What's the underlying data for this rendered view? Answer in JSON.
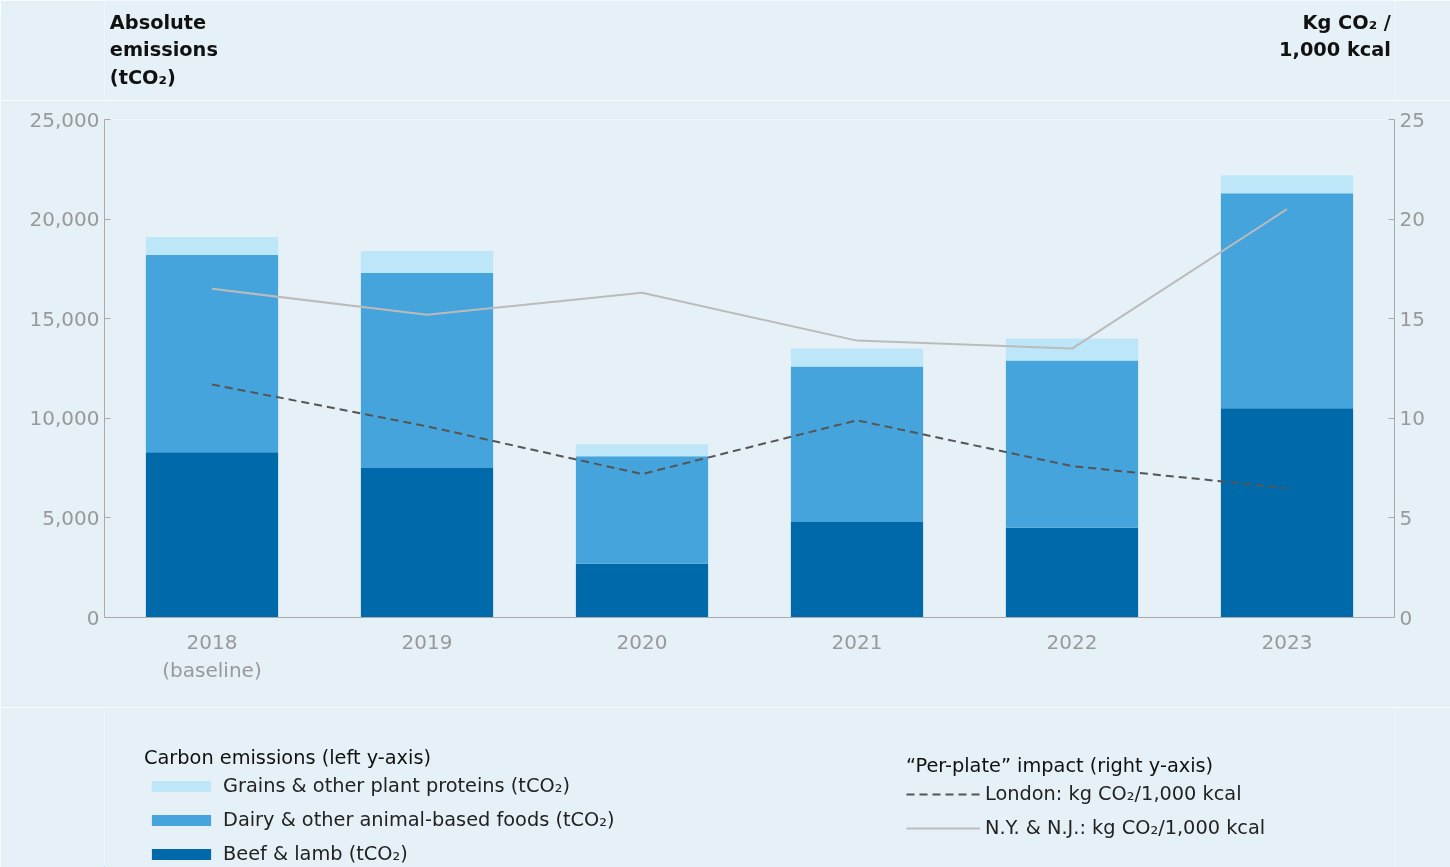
{
  "chart_data": {
    "type": "bar",
    "stacked": true,
    "categories": [
      "2018\n(baseline)",
      "2019",
      "2020",
      "2021",
      "2022",
      "2023"
    ],
    "ylabel": "Absolute\nemissions\n(tCO₂)",
    "y2label": "Kg CO₂ /\n1,000 kcal",
    "ylim": [
      0,
      25000
    ],
    "yticks": [
      0,
      {
        "value": 5000,
        "label": "5,000"
      },
      {
        "value": 10000,
        "label": "10,000"
      },
      {
        "value": 15000,
        "label": "15,000"
      },
      {
        "value": 20000,
        "label": "20,000"
      },
      {
        "value": 25000,
        "label": "25,000"
      }
    ],
    "y2lim": [
      0,
      25
    ],
    "y2ticks": [
      0,
      5,
      10,
      15,
      20,
      25
    ],
    "grid": false,
    "legend": "bottom",
    "legend_title": "Carbon emissions (left y-axis)",
    "series": [
      {
        "name": "Beef & lamb (tCO₂)",
        "color": "#0069aa",
        "values": [
          8300,
          7500,
          2700,
          4800,
          4500,
          10500
        ]
      },
      {
        "name": "Dairy & other animal-based foods (tCO₂)",
        "color": "#44a4db",
        "values": [
          9900,
          9800,
          5400,
          7800,
          8400,
          10800
        ]
      },
      {
        "name": "Grains & other plant proteins (tCO₂)",
        "color": "#bde6f8",
        "values": [
          900,
          1100,
          600,
          900,
          1100,
          900
        ]
      },
      {
        "name": "London: kg CO₂/1,000 kcal",
        "type": "line",
        "axis": "y2",
        "line_style": "dashed",
        "color": "#555555",
        "values": [
          11.7,
          9.6,
          7.2,
          9.9,
          7.6,
          6.5
        ]
      },
      {
        "name": "N.Y. & N.J.: kg CO₂/1,000 kcal",
        "type": "line",
        "axis": "y2",
        "line_style": "solid",
        "color": "#bbbbbb",
        "values": [
          16.5,
          15.2,
          16.3,
          13.9,
          13.5,
          20.5
        ]
      }
    ],
    "annotations": [
      "“Per-plate” impact (right y-axis)"
    ]
  }
}
